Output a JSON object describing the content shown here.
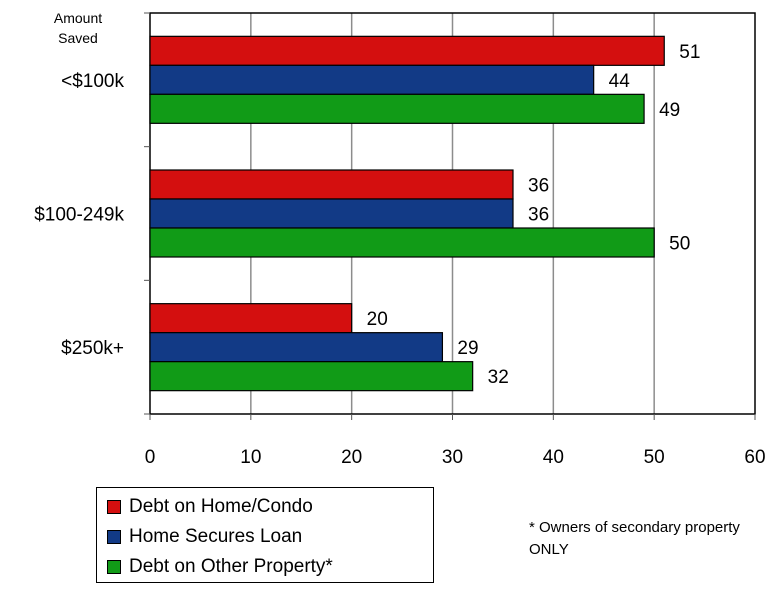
{
  "chart_data": {
    "type": "bar",
    "orientation": "horizontal",
    "corner_label": "Amount\nSaved",
    "categories": [
      "<$100k",
      "$100-249k",
      "$250k+"
    ],
    "series": [
      {
        "name": "Debt on Home/Condo",
        "color": "#d40f0f",
        "values": [
          51,
          36,
          20
        ]
      },
      {
        "name": "Home Secures Loan",
        "color": "#123a86",
        "values": [
          44,
          36,
          29
        ]
      },
      {
        "name": "Debt on Other Property*",
        "color": "#119b17",
        "values": [
          49,
          50,
          32
        ]
      }
    ],
    "xlim": [
      0,
      60
    ],
    "xticks": [
      0,
      10,
      20,
      30,
      40,
      50,
      60
    ],
    "grid": true,
    "legend_position": "bottom-left",
    "footnote": "* Owners of secondary property ONLY"
  }
}
